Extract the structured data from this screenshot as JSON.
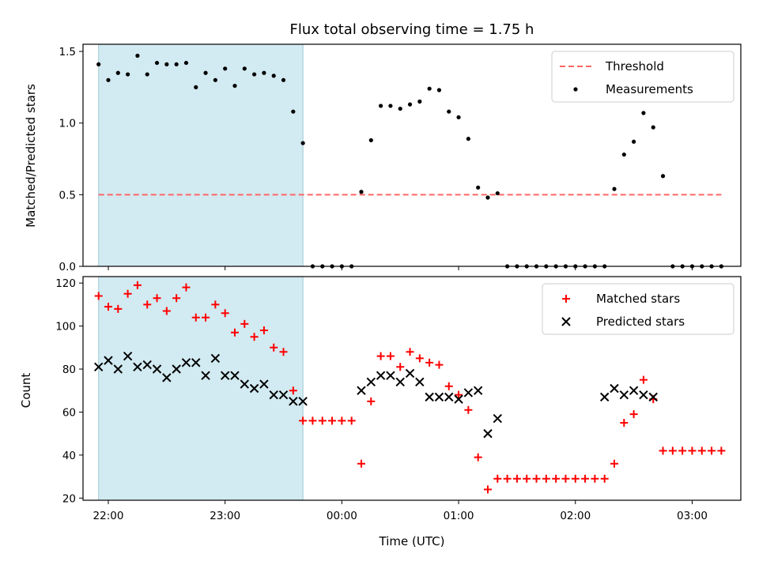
{
  "chart_data": [
    {
      "type": "scatter",
      "title": "Flux total observing time = 1.75 h",
      "ylabel": "Matched/Predicted stars",
      "xlabel": "",
      "ylim": [
        0,
        1.55
      ],
      "y_ticks": [
        "0.0",
        "0.5",
        "1.0",
        "1.5"
      ],
      "y_tick_values": [
        0,
        0.5,
        1.0,
        1.5
      ],
      "shaded_region": {
        "x_start": "21:55",
        "x_end": "23:40",
        "color": "#add8e6"
      },
      "series": [
        {
          "name": "Threshold",
          "style": "dashed-line",
          "color": "#ff6666",
          "x": [
            "21:55",
            "03:15"
          ],
          "y": [
            0.5,
            0.5
          ]
        },
        {
          "name": "Measurements",
          "style": "dot",
          "color": "#000000",
          "x": [
            "21:55",
            "22:00",
            "22:05",
            "22:10",
            "22:15",
            "22:20",
            "22:25",
            "22:30",
            "22:35",
            "22:40",
            "22:45",
            "22:50",
            "22:55",
            "23:00",
            "23:05",
            "23:10",
            "23:15",
            "23:20",
            "23:25",
            "23:30",
            "23:35",
            "23:40",
            "23:45",
            "23:50",
            "23:55",
            "00:00",
            "00:05",
            "00:10",
            "00:15",
            "00:20",
            "00:25",
            "00:30",
            "00:35",
            "00:40",
            "00:45",
            "00:50",
            "00:55",
            "01:00",
            "01:05",
            "01:10",
            "01:15",
            "01:20",
            "01:25",
            "01:30",
            "01:35",
            "01:40",
            "01:45",
            "01:50",
            "01:55",
            "02:00",
            "02:05",
            "02:10",
            "02:15",
            "02:20",
            "02:25",
            "02:30",
            "02:35",
            "02:40",
            "02:45",
            "02:50",
            "02:55",
            "03:00",
            "03:05",
            "03:10",
            "03:15"
          ],
          "y": [
            1.41,
            1.3,
            1.35,
            1.34,
            1.47,
            1.34,
            1.42,
            1.41,
            1.41,
            1.42,
            1.25,
            1.35,
            1.3,
            1.38,
            1.26,
            1.38,
            1.34,
            1.35,
            1.33,
            1.3,
            1.08,
            0.86,
            0,
            0,
            0,
            0,
            0,
            0.52,
            0.88,
            1.12,
            1.12,
            1.1,
            1.13,
            1.15,
            1.24,
            1.23,
            1.08,
            1.04,
            0.89,
            0.55,
            0.48,
            0.51,
            0,
            0,
            0,
            0,
            0,
            0,
            0,
            0,
            0,
            0,
            0,
            0.54,
            0.78,
            0.87,
            1.07,
            0.97,
            0.63,
            0,
            0,
            0,
            0,
            0,
            0
          ]
        }
      ],
      "legend": {
        "placement": "top-right",
        "entries": [
          "Threshold",
          "Measurements"
        ]
      }
    },
    {
      "type": "scatter",
      "title": "",
      "xlabel": "Time (UTC)",
      "ylabel": "Count",
      "ylim": [
        19,
        123
      ],
      "y_ticks": [
        "20",
        "40",
        "60",
        "80",
        "100",
        "120"
      ],
      "y_tick_values": [
        20,
        40,
        60,
        80,
        100,
        120
      ],
      "x_ticks": [
        "22:00",
        "23:00",
        "00:00",
        "01:00",
        "02:00",
        "03:00"
      ],
      "shaded_region": {
        "x_start": "21:55",
        "x_end": "23:40",
        "color": "#add8e6"
      },
      "series": [
        {
          "name": "Matched stars",
          "marker": "plus",
          "color": "#ff0000",
          "x": [
            "21:55",
            "22:00",
            "22:05",
            "22:10",
            "22:15",
            "22:20",
            "22:25",
            "22:30",
            "22:35",
            "22:40",
            "22:45",
            "22:50",
            "22:55",
            "23:00",
            "23:05",
            "23:10",
            "23:15",
            "23:20",
            "23:25",
            "23:30",
            "23:35",
            "23:40",
            "23:45",
            "23:50",
            "23:55",
            "00:00",
            "00:05",
            "00:10",
            "00:15",
            "00:20",
            "00:25",
            "00:30",
            "00:35",
            "00:40",
            "00:45",
            "00:50",
            "00:55",
            "01:00",
            "01:05",
            "01:10",
            "01:15",
            "01:20",
            "01:25",
            "01:30",
            "01:35",
            "01:40",
            "01:45",
            "01:50",
            "01:55",
            "02:00",
            "02:05",
            "02:10",
            "02:15",
            "02:20",
            "02:25",
            "02:30",
            "02:35",
            "02:40",
            "02:45",
            "02:50",
            "02:55",
            "03:00",
            "03:05",
            "03:10",
            "03:15"
          ],
          "y": [
            114,
            109,
            108,
            115,
            119,
            110,
            113,
            107,
            113,
            118,
            104,
            104,
            110,
            106,
            97,
            101,
            95,
            98,
            90,
            88,
            70,
            56,
            56,
            56,
            56,
            56,
            56,
            36,
            65,
            86,
            86,
            81,
            88,
            85,
            83,
            82,
            72,
            68,
            61,
            39,
            24,
            29,
            29,
            29,
            29,
            29,
            29,
            29,
            29,
            29,
            29,
            29,
            29,
            36,
            55,
            59,
            75,
            66,
            42,
            42,
            42,
            42,
            42,
            42,
            42
          ]
        },
        {
          "name": "Predicted stars",
          "marker": "x",
          "color": "#000000",
          "x": [
            "21:55",
            "22:00",
            "22:05",
            "22:10",
            "22:15",
            "22:20",
            "22:25",
            "22:30",
            "22:35",
            "22:40",
            "22:45",
            "22:50",
            "22:55",
            "23:00",
            "23:05",
            "23:10",
            "23:15",
            "23:20",
            "23:25",
            "23:30",
            "23:35",
            "23:40",
            "00:10",
            "00:15",
            "00:20",
            "00:25",
            "00:30",
            "00:35",
            "00:40",
            "00:45",
            "00:50",
            "00:55",
            "01:00",
            "01:05",
            "01:10",
            "01:15",
            "01:20",
            "02:15",
            "02:20",
            "02:25",
            "02:30",
            "02:35",
            "02:40"
          ],
          "y": [
            81,
            84,
            80,
            86,
            81,
            82,
            80,
            76,
            80,
            83,
            83,
            77,
            85,
            77,
            77,
            73,
            71,
            73,
            68,
            68,
            65,
            65,
            70,
            74,
            77,
            77,
            74,
            78,
            74,
            67,
            67,
            67,
            66,
            69,
            70,
            50,
            57,
            67,
            71,
            68,
            70,
            68,
            67
          ]
        }
      ],
      "legend": {
        "placement": "top-right",
        "entries": [
          "Matched stars",
          "Predicted stars"
        ]
      }
    }
  ]
}
